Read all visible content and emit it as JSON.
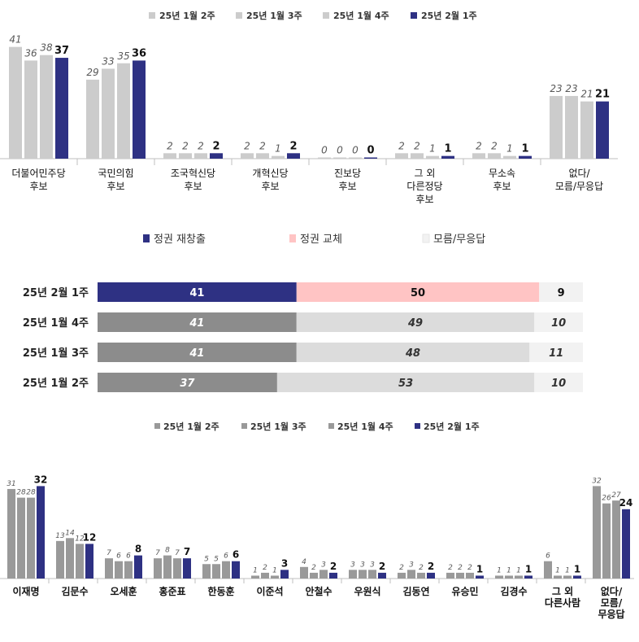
{
  "chart_data": [
    {
      "type": "bar",
      "legend_position": "top",
      "grid": false,
      "series_colors": [
        "#cccccc",
        "#cccccc",
        "#cccccc",
        "#2e3183"
      ],
      "series": [
        {
          "name": "25년 1월 2주",
          "values": [
            41,
            29,
            2,
            2,
            0,
            2,
            2,
            23
          ]
        },
        {
          "name": "25년 1월 3주",
          "values": [
            36,
            33,
            2,
            2,
            0,
            2,
            2,
            23
          ]
        },
        {
          "name": "25년 1월 4주",
          "values": [
            38,
            35,
            2,
            1,
            0,
            1,
            1,
            21
          ]
        },
        {
          "name": "25년 2월 1주",
          "values": [
            37,
            36,
            2,
            2,
            0,
            1,
            1,
            21
          ]
        }
      ],
      "categories": [
        [
          "더불어민주당",
          "후보"
        ],
        [
          "국민의힘",
          "후보"
        ],
        [
          "조국혁신당",
          "후보"
        ],
        [
          "개혁신당",
          "후보"
        ],
        [
          "진보당",
          "후보"
        ],
        [
          "그 외",
          "다른정당",
          "후보"
        ],
        [
          "무소속",
          "후보"
        ],
        [
          "없다/",
          "모름/무응답"
        ]
      ]
    },
    {
      "type": "bar",
      "orientation": "horizontal",
      "stacked": true,
      "legend_position": "top",
      "legend": [
        {
          "name": "정권 재창출",
          "color": "#2e3183"
        },
        {
          "name": "정권 교체",
          "color": "#ffc4c4"
        },
        {
          "name": "모름/무응답",
          "color": "#f2f2f2"
        }
      ],
      "rows": [
        {
          "label": "25년 2월 1주",
          "values": [
            41,
            50,
            9
          ],
          "colors": [
            "#2e3183",
            "#ffc4c4",
            "#f2f2f2"
          ],
          "text_color": [
            "#ffffff",
            "#111111",
            "#111111"
          ],
          "italic": false
        },
        {
          "label": "25년 1월 4주",
          "values": [
            41,
            49,
            10
          ],
          "colors": [
            "#8c8c8c",
            "#dcdcdc",
            "#f2f2f2"
          ],
          "text_color": [
            "#ffffff",
            "#333333",
            "#333333"
          ],
          "italic": true
        },
        {
          "label": "25년 1월 3주",
          "values": [
            41,
            48,
            11
          ],
          "colors": [
            "#8c8c8c",
            "#dcdcdc",
            "#f2f2f2"
          ],
          "text_color": [
            "#ffffff",
            "#333333",
            "#333333"
          ],
          "italic": true
        },
        {
          "label": "25년 1월 2주",
          "values": [
            37,
            53,
            10
          ],
          "colors": [
            "#8c8c8c",
            "#dcdcdc",
            "#f2f2f2"
          ],
          "text_color": [
            "#ffffff",
            "#333333",
            "#333333"
          ],
          "italic": true
        }
      ]
    },
    {
      "type": "bar",
      "legend_position": "top",
      "grid": false,
      "series_colors": [
        "#999999",
        "#999999",
        "#999999",
        "#2e3183"
      ],
      "series": [
        {
          "name": "25년 1월 2주",
          "values": [
            31,
            13,
            7,
            7,
            5,
            1,
            4,
            3,
            2,
            2,
            1,
            6,
            32
          ]
        },
        {
          "name": "25년 1월 3주",
          "values": [
            28,
            14,
            6,
            8,
            5,
            2,
            2,
            3,
            3,
            2,
            1,
            1,
            26
          ]
        },
        {
          "name": "25년 1월 4주",
          "values": [
            28,
            12,
            6,
            7,
            6,
            1,
            3,
            3,
            2,
            2,
            1,
            1,
            27
          ]
        },
        {
          "name": "25년 2월 1주",
          "values": [
            32,
            12,
            8,
            7,
            6,
            3,
            2,
            2,
            2,
            1,
            1,
            1,
            24
          ]
        }
      ],
      "categories": [
        [
          "이재명"
        ],
        [
          "김문수"
        ],
        [
          "오세훈"
        ],
        [
          "홍준표"
        ],
        [
          "한동훈"
        ],
        [
          "이준석"
        ],
        [
          "안철수"
        ],
        [
          "우원식"
        ],
        [
          "김동연"
        ],
        [
          "유승민"
        ],
        [
          "김경수"
        ],
        [
          "그 외",
          "다른사람"
        ],
        [
          "없다/",
          "모름/",
          "무응답"
        ]
      ]
    }
  ]
}
